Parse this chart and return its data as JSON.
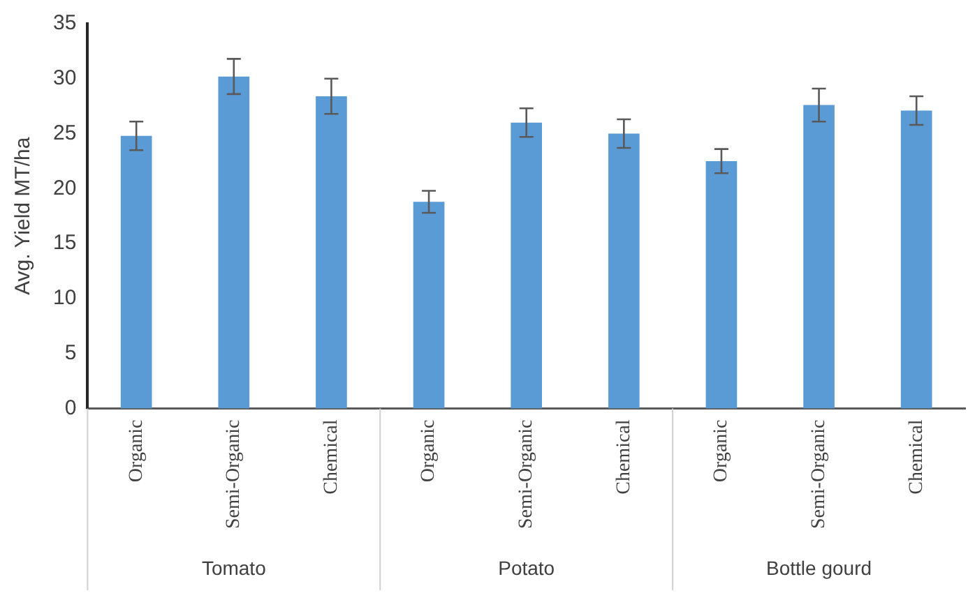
{
  "chart_data": {
    "type": "bar",
    "ylabel": "Avg. Yield MT/ha",
    "categories": [
      "Organic",
      "Semi-Organic",
      "Chemical",
      "Organic",
      "Semi-Organic",
      "Chemical",
      "Organic",
      "Semi-Organic",
      "Chemical"
    ],
    "values": [
      24.8,
      30.2,
      28.4,
      18.8,
      26.0,
      25.0,
      22.5,
      27.6,
      27.1
    ],
    "errors": [
      1.3,
      1.6,
      1.6,
      1.0,
      1.3,
      1.3,
      1.1,
      1.5,
      1.3
    ],
    "color": "#5b9bd5",
    "annotations": [
      "Tomato",
      "Potato",
      "Bottle gourd"
    ],
    "ylim": [
      0,
      35
    ],
    "yticks": [
      0,
      5,
      10,
      15,
      20,
      25,
      30,
      35
    ],
    "grid": false,
    "legend": false
  }
}
